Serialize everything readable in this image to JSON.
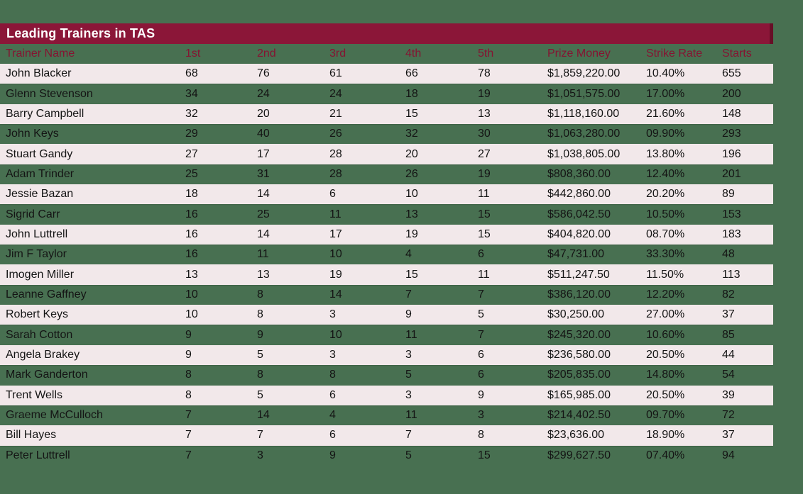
{
  "page": {
    "background_color": "#487051",
    "accent_color": "#8b1638",
    "row_alt_color": "#f2e8ea"
  },
  "chart_data": {
    "type": "table",
    "title": "Leading Trainers in TAS",
    "columns": [
      "Trainer Name",
      "1st",
      "2nd",
      "3rd",
      "4th",
      "5th",
      "Prize Money",
      "Strike Rate",
      "Starts"
    ],
    "column_keys": [
      "trainer-name",
      "1st",
      "2nd",
      "3rd",
      "4th",
      "5th",
      "prize-money",
      "strike-rate",
      "starts"
    ],
    "rows": [
      [
        "John Blacker",
        "68",
        "76",
        "61",
        "66",
        "78",
        "$1,859,220.00",
        "10.40%",
        "655"
      ],
      [
        "Glenn Stevenson",
        "34",
        "24",
        "24",
        "18",
        "19",
        "$1,051,575.00",
        "17.00%",
        "200"
      ],
      [
        "Barry Campbell",
        "32",
        "20",
        "21",
        "15",
        "13",
        "$1,118,160.00",
        "21.60%",
        "148"
      ],
      [
        "John Keys",
        "29",
        "40",
        "26",
        "32",
        "30",
        "$1,063,280.00",
        "09.90%",
        "293"
      ],
      [
        "Stuart Gandy",
        "27",
        "17",
        "28",
        "20",
        "27",
        "$1,038,805.00",
        "13.80%",
        "196"
      ],
      [
        "Adam Trinder",
        "25",
        "31",
        "28",
        "26",
        "19",
        "$808,360.00",
        "12.40%",
        "201"
      ],
      [
        "Jessie Bazan",
        "18",
        "14",
        "6",
        "10",
        "11",
        "$442,860.00",
        "20.20%",
        "89"
      ],
      [
        "Sigrid Carr",
        "16",
        "25",
        "11",
        "13",
        "15",
        "$586,042.50",
        "10.50%",
        "153"
      ],
      [
        "John Luttrell",
        "16",
        "14",
        "17",
        "19",
        "15",
        "$404,820.00",
        "08.70%",
        "183"
      ],
      [
        "Jim F Taylor",
        "16",
        "11",
        "10",
        "4",
        "6",
        "$47,731.00",
        "33.30%",
        "48"
      ],
      [
        "Imogen Miller",
        "13",
        "13",
        "19",
        "15",
        "11",
        "$511,247.50",
        "11.50%",
        "113"
      ],
      [
        "Leanne Gaffney",
        "10",
        "8",
        "14",
        "7",
        "7",
        "$386,120.00",
        "12.20%",
        "82"
      ],
      [
        "Robert Keys",
        "10",
        "8",
        "3",
        "9",
        "5",
        "$30,250.00",
        "27.00%",
        "37"
      ],
      [
        "Sarah Cotton",
        "9",
        "9",
        "10",
        "11",
        "7",
        "$245,320.00",
        "10.60%",
        "85"
      ],
      [
        "Angela Brakey",
        "9",
        "5",
        "3",
        "3",
        "6",
        "$236,580.00",
        "20.50%",
        "44"
      ],
      [
        "Mark Ganderton",
        "8",
        "8",
        "8",
        "5",
        "6",
        "$205,835.00",
        "14.80%",
        "54"
      ],
      [
        "Trent Wells",
        "8",
        "5",
        "6",
        "3",
        "9",
        "$165,985.00",
        "20.50%",
        "39"
      ],
      [
        "Graeme McCulloch",
        "7",
        "14",
        "4",
        "11",
        "3",
        "$214,402.50",
        "09.70%",
        "72"
      ],
      [
        "Bill Hayes",
        "7",
        "7",
        "6",
        "7",
        "8",
        "$23,636.00",
        "18.90%",
        "37"
      ],
      [
        "Peter Luttrell",
        "7",
        "3",
        "9",
        "5",
        "15",
        "$299,627.50",
        "07.40%",
        "94"
      ]
    ]
  }
}
